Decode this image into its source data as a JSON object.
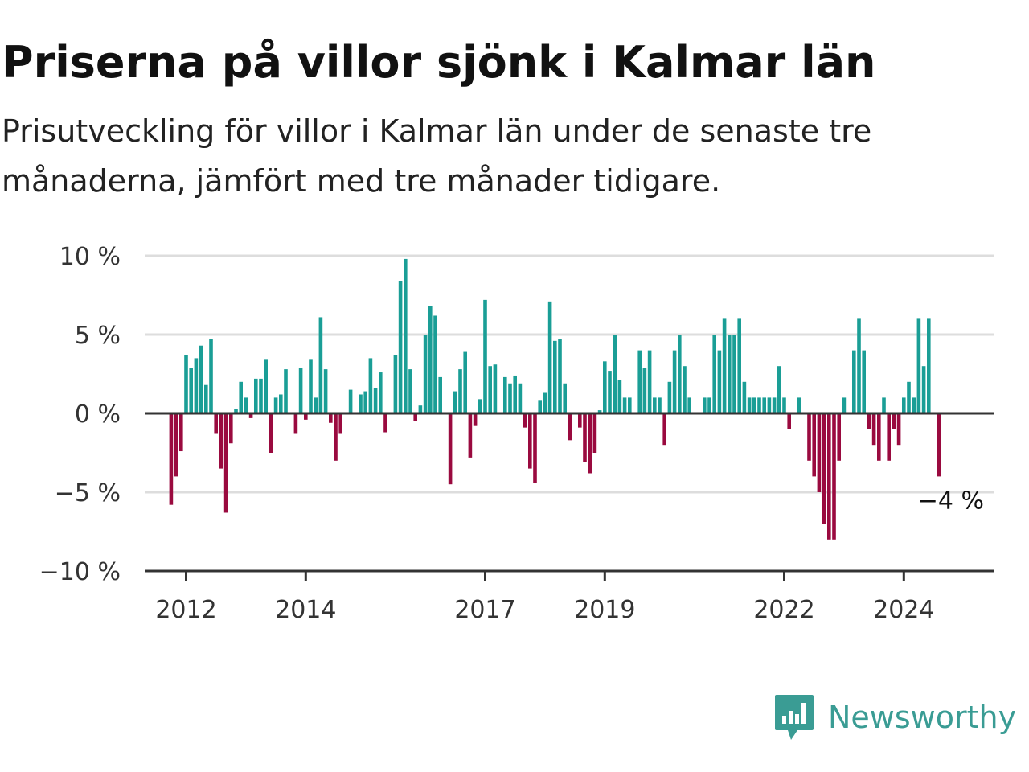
{
  "title": "Priserna på villor sjönk i Kalmar län",
  "subtitle": "Prisutveckling för villor i Kalmar län under de senaste tre månaderna, jämfört med tre månader tidigare.",
  "brand": {
    "name": "Newsworthy",
    "icon": "newsworthy-logo-icon",
    "color": "#3a9c94"
  },
  "colors": {
    "positive": "#1a9e96",
    "negative": "#9a0a3f",
    "grid": "#dddddd",
    "axis": "#333333"
  },
  "chart_data": {
    "type": "bar",
    "x_start": "2011-10",
    "x_interval": "month",
    "ylim": [
      -10,
      10
    ],
    "y_ticks": [
      {
        "value": 10,
        "label": "10 %"
      },
      {
        "value": 5,
        "label": "5 %"
      },
      {
        "value": 0,
        "label": "0 %"
      },
      {
        "value": -5,
        "label": "−5 %"
      },
      {
        "value": -10,
        "label": "−10 %"
      }
    ],
    "x_ticks": [
      {
        "value": "2012-01",
        "label": "2012"
      },
      {
        "value": "2014-01",
        "label": "2014"
      },
      {
        "value": "2017-01",
        "label": "2017"
      },
      {
        "value": "2019-01",
        "label": "2019"
      },
      {
        "value": "2022-01",
        "label": "2022"
      },
      {
        "value": "2024-01",
        "label": "2024"
      }
    ],
    "grid": true,
    "values": [
      -5.8,
      -4.0,
      -2.4,
      3.7,
      2.9,
      3.5,
      4.3,
      1.8,
      4.7,
      -1.3,
      -3.5,
      -6.3,
      -1.9,
      0.3,
      2.0,
      1.0,
      -0.3,
      2.2,
      2.2,
      3.4,
      -2.5,
      1.0,
      1.2,
      2.8,
      0.0,
      -1.3,
      2.9,
      -0.4,
      3.4,
      1.0,
      6.1,
      2.8,
      -0.6,
      -3.0,
      -1.3,
      0.0,
      1.5,
      0.0,
      1.2,
      1.4,
      3.5,
      1.6,
      2.6,
      -1.2,
      0.0,
      3.7,
      8.4,
      9.8,
      2.8,
      -0.5,
      0.5,
      5.0,
      6.8,
      6.2,
      2.3,
      0.0,
      -4.5,
      1.4,
      2.8,
      3.9,
      -2.8,
      -0.8,
      0.9,
      7.2,
      3.0,
      3.1,
      0.0,
      2.3,
      1.9,
      2.4,
      1.9,
      -0.9,
      -3.5,
      -4.4,
      0.8,
      1.3,
      7.1,
      4.6,
      4.7,
      1.9,
      -1.7,
      0.0,
      -0.9,
      -3.1,
      -3.8,
      -2.5,
      0.2,
      3.3,
      2.7,
      5.0,
      2.1,
      1.0,
      1.0,
      0.0,
      4.0,
      2.9,
      4.0,
      1.0,
      1.0,
      -2.0,
      2.0,
      4.0,
      5.0,
      3.0,
      1.0,
      0.0,
      0.0,
      1.0,
      1.0,
      5.0,
      4.0,
      6.0,
      5.0,
      5.0,
      6.0,
      2.0,
      1.0,
      1.0,
      1.0,
      1.0,
      1.0,
      1.0,
      3.0,
      1.0,
      -1.0,
      0.0,
      1.0,
      0.0,
      -3.0,
      -4.0,
      -5.0,
      -7.0,
      -8.0,
      -8.0,
      -3.0,
      1.0,
      0.0,
      4.0,
      6.0,
      4.0,
      -1.0,
      -2.0,
      -3.0,
      1.0,
      -3.0,
      -1.0,
      -2.0,
      1.0,
      2.0,
      1.0,
      6.0,
      3.0,
      6.0,
      0.0,
      -4.0
    ],
    "annotation": {
      "label": "−4 %",
      "target": "last"
    }
  }
}
